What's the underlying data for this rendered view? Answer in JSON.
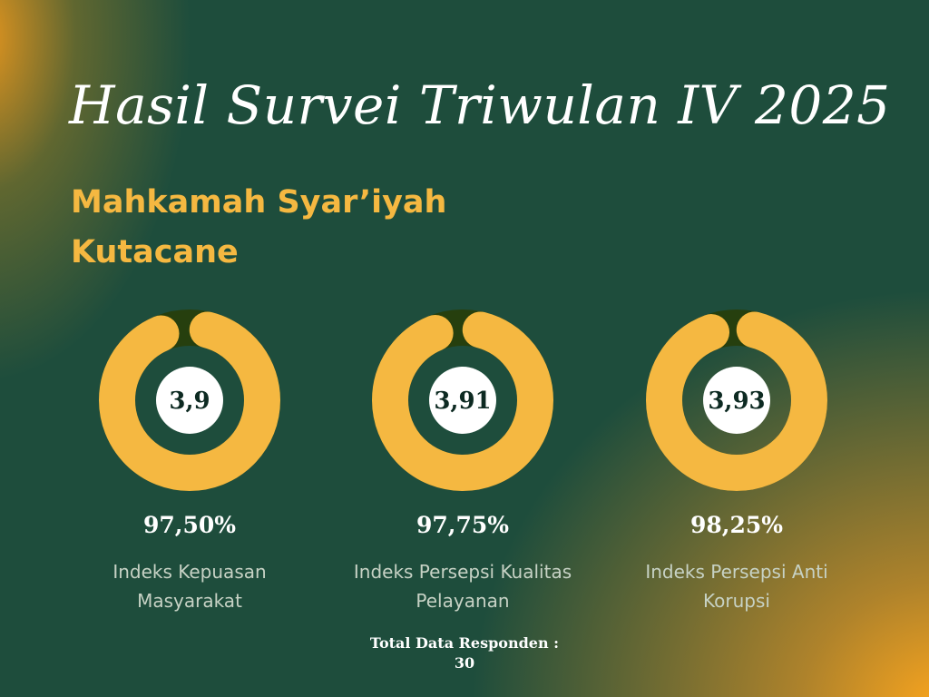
{
  "title": "Hasil Survei Triwulan IV 2025",
  "subtitle_line1": "Mahkamah Syar’iyah",
  "subtitle_line2": "Kutacane",
  "colors": {
    "background": "#1e4d3c",
    "ring": "#f5b841",
    "track": "#263f0e",
    "accent": "#f5b841"
  },
  "chart_data": [
    {
      "type": "pie",
      "style": "donut",
      "center_value": "3,9",
      "percent_label": "97,50%",
      "value": 97.5,
      "label_line1": "Indeks Kepuasan",
      "label_line2": "Masyarakat"
    },
    {
      "type": "pie",
      "style": "donut",
      "center_value": "3,91",
      "percent_label": "97,75%",
      "value": 97.75,
      "label_line1": "Indeks Persepsi Kualitas",
      "label_line2": "Pelayanan"
    },
    {
      "type": "pie",
      "style": "donut",
      "center_value": "3,93",
      "percent_label": "98,25%",
      "value": 98.25,
      "label_line1": "Indeks Persepsi Anti",
      "label_line2": "Korupsi"
    }
  ],
  "total_label": "Total Data Responden :",
  "total_value": "30"
}
